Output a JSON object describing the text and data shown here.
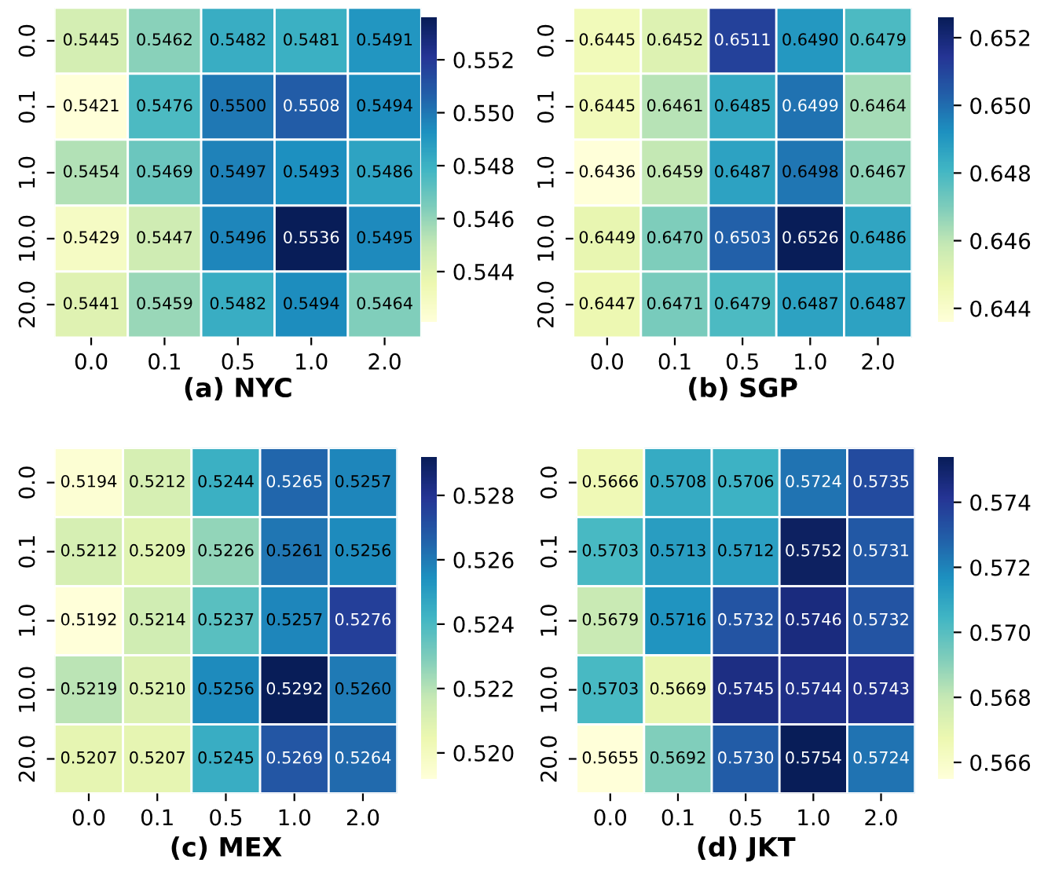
{
  "chart_data": [
    {
      "type": "heatmap",
      "title": "(a) NYC",
      "categories": [
        "0.0",
        "0.1",
        "0.5",
        "1.0",
        "2.0"
      ],
      "y_categories": [
        "0.0",
        "0.1",
        "1.0",
        "10.0",
        "20.0"
      ],
      "cells": [
        [
          0.5445,
          0.5462,
          0.5482,
          0.5481,
          0.5491
        ],
        [
          0.5421,
          0.5476,
          0.55,
          0.5508,
          0.5494
        ],
        [
          0.5454,
          0.5469,
          0.5497,
          0.5493,
          0.5486
        ],
        [
          0.5429,
          0.5447,
          0.5496,
          0.5536,
          0.5495
        ],
        [
          0.5441,
          0.5459,
          0.5482,
          0.5494,
          0.5464
        ]
      ],
      "cell_labels": [
        [
          "0.5445",
          "0.5462",
          "0.5482",
          "0.5481",
          "0.5491"
        ],
        [
          "0.5421",
          "0.5476",
          "0.5500",
          "0.5508",
          "0.5494"
        ],
        [
          "0.5454",
          "0.5469",
          "0.5497",
          "0.5493",
          "0.5486"
        ],
        [
          "0.5429",
          "0.5447",
          "0.5496",
          "0.5536",
          "0.5495"
        ],
        [
          "0.5441",
          "0.5459",
          "0.5482",
          "0.5494",
          "0.5464"
        ]
      ],
      "clim": [
        0.5421,
        0.5536
      ],
      "cticks": [
        0.544,
        0.546,
        0.548,
        {
          "value": 0.55,
          "label": "0.550"
        },
        0.552
      ]
    },
    {
      "type": "heatmap",
      "title": "(b) SGP",
      "categories": [
        "0.0",
        "0.1",
        "0.5",
        "1.0",
        "2.0"
      ],
      "y_categories": [
        "0.0",
        "0.1",
        "1.0",
        "10.0",
        "20.0"
      ],
      "cells": [
        [
          0.6445,
          0.6452,
          0.6511,
          0.649,
          0.6479
        ],
        [
          0.6445,
          0.6461,
          0.6485,
          0.6499,
          0.6464
        ],
        [
          0.6436,
          0.6459,
          0.6487,
          0.6498,
          0.6467
        ],
        [
          0.6449,
          0.647,
          0.6503,
          0.6526,
          0.6486
        ],
        [
          0.6447,
          0.6471,
          0.6479,
          0.6487,
          0.6487
        ]
      ],
      "cell_labels": [
        [
          "0.6445",
          "0.6452",
          "0.6511",
          "0.6490",
          "0.6479"
        ],
        [
          "0.6445",
          "0.6461",
          "0.6485",
          "0.6499",
          "0.6464"
        ],
        [
          "0.6436",
          "0.6459",
          "0.6487",
          "0.6498",
          "0.6467"
        ],
        [
          "0.6449",
          "0.6470",
          "0.6503",
          "0.6526",
          "0.6486"
        ],
        [
          "0.6447",
          "0.6471",
          "0.6479",
          "0.6487",
          "0.6487"
        ]
      ],
      "clim": [
        0.6436,
        0.6526
      ],
      "cticks": [
        0.644,
        0.646,
        0.648,
        {
          "value": 0.65,
          "label": "0.650"
        },
        0.652
      ]
    },
    {
      "type": "heatmap",
      "title": "(c) MEX",
      "categories": [
        "0.0",
        "0.1",
        "0.5",
        "1.0",
        "2.0"
      ],
      "y_categories": [
        "0.0",
        "0.1",
        "1.0",
        "10.0",
        "20.0"
      ],
      "cells": [
        [
          0.5194,
          0.5212,
          0.5244,
          0.5265,
          0.5257
        ],
        [
          0.5212,
          0.5209,
          0.5226,
          0.5261,
          0.5256
        ],
        [
          0.5192,
          0.5214,
          0.5237,
          0.5257,
          0.5276
        ],
        [
          0.5219,
          0.521,
          0.5256,
          0.5292,
          0.526
        ],
        [
          0.5207,
          0.5207,
          0.5245,
          0.5269,
          0.5264
        ]
      ],
      "cell_labels": [
        [
          "0.5194",
          "0.5212",
          "0.5244",
          "0.5265",
          "0.5257"
        ],
        [
          "0.5212",
          "0.5209",
          "0.5226",
          "0.5261",
          "0.5256"
        ],
        [
          "0.5192",
          "0.5214",
          "0.5237",
          "0.5257",
          "0.5276"
        ],
        [
          "0.5219",
          "0.5210",
          "0.5256",
          "0.5292",
          "0.5260"
        ],
        [
          "0.5207",
          "0.5207",
          "0.5245",
          "0.5269",
          "0.5264"
        ]
      ],
      "clim": [
        0.5192,
        0.5292
      ],
      "cticks": [
        {
          "value": 0.52,
          "label": "0.520"
        },
        0.522,
        0.524,
        0.526,
        0.528
      ]
    },
    {
      "type": "heatmap",
      "title": "(d) JKT",
      "categories": [
        "0.0",
        "0.1",
        "0.5",
        "1.0",
        "2.0"
      ],
      "y_categories": [
        "0.0",
        "0.1",
        "1.0",
        "10.0",
        "20.0"
      ],
      "cells": [
        [
          0.5666,
          0.5708,
          0.5706,
          0.5724,
          0.5735
        ],
        [
          0.5703,
          0.5713,
          0.5712,
          0.5752,
          0.5731
        ],
        [
          0.5679,
          0.5716,
          0.5732,
          0.5746,
          0.5732
        ],
        [
          0.5703,
          0.5669,
          0.5745,
          0.5744,
          0.5743
        ],
        [
          0.5655,
          0.5692,
          0.573,
          0.5754,
          0.5724
        ]
      ],
      "cell_labels": [
        [
          "0.5666",
          "0.5708",
          "0.5706",
          "0.5724",
          "0.5735"
        ],
        [
          "0.5703",
          "0.5713",
          "0.5712",
          "0.5752",
          "0.5731"
        ],
        [
          "0.5679",
          "0.5716",
          "0.5732",
          "0.5746",
          "0.5732"
        ],
        [
          "0.5703",
          "0.5669",
          "0.5745",
          "0.5744",
          "0.5743"
        ],
        [
          "0.5655",
          "0.5692",
          "0.5730",
          "0.5754",
          "0.5724"
        ]
      ],
      "clim": [
        0.5655,
        0.5754
      ],
      "cticks": [
        0.566,
        0.568,
        {
          "value": 0.57,
          "label": "0.570"
        },
        0.572,
        0.574
      ]
    }
  ]
}
